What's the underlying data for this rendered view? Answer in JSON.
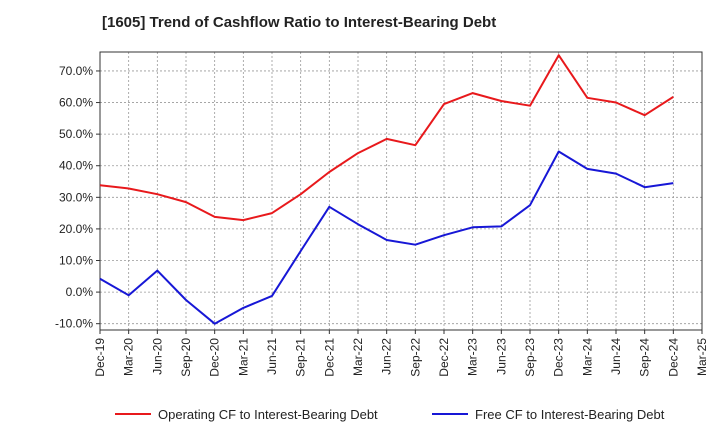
{
  "title": "[1605]  Trend of Cashflow Ratio to Interest-Bearing Debt",
  "chart_data": {
    "type": "line",
    "title": "[1605]  Trend of Cashflow Ratio to Interest-Bearing Debt",
    "xlabel": "",
    "ylabel": "",
    "categories": [
      "Dec-19",
      "Mar-20",
      "Jun-20",
      "Sep-20",
      "Dec-20",
      "Mar-21",
      "Jun-21",
      "Sep-21",
      "Dec-21",
      "Mar-22",
      "Jun-22",
      "Sep-22",
      "Dec-22",
      "Mar-23",
      "Jun-23",
      "Sep-23",
      "Dec-23",
      "Mar-24",
      "Jun-24",
      "Sep-24",
      "Dec-24",
      "Mar-25"
    ],
    "ylim": [
      -12,
      76
    ],
    "yticks": [
      "-10.0%",
      "0.0%",
      "10.0%",
      "20.0%",
      "30.0%",
      "40.0%",
      "50.0%",
      "60.0%",
      "70.0%"
    ],
    "ytick_values": [
      -10,
      0,
      10,
      20,
      30,
      40,
      50,
      60,
      70
    ],
    "grid": true,
    "legend_position": "bottom",
    "series": [
      {
        "name": "Operating CF to Interest-Bearing Debt",
        "color": "#e8191c",
        "values": [
          33.8,
          32.8,
          31.0,
          28.5,
          23.8,
          22.8,
          25.0,
          31.0,
          38.0,
          44.0,
          48.5,
          46.5,
          59.5,
          63.0,
          60.5,
          59.0,
          75.0,
          61.5,
          60.0,
          56.0,
          61.8,
          null
        ]
      },
      {
        "name": "Free CF to Interest-Bearing Debt",
        "color": "#1717d6",
        "values": [
          4.2,
          -1.0,
          6.8,
          -2.5,
          -10.0,
          -5.0,
          -1.2,
          13.0,
          27.0,
          21.5,
          16.5,
          15.0,
          18.0,
          20.5,
          20.8,
          27.5,
          44.5,
          39.0,
          37.5,
          33.2,
          34.5,
          null
        ]
      }
    ]
  }
}
